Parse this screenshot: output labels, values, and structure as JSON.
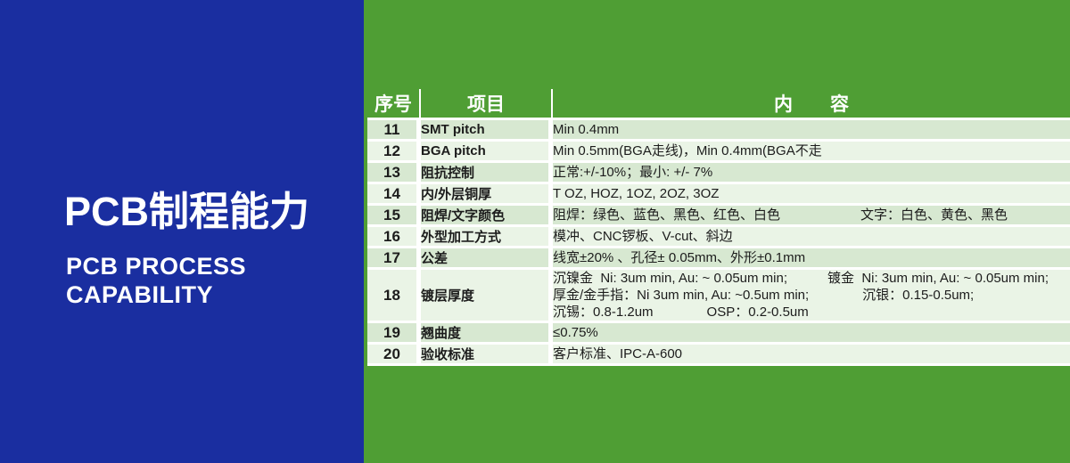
{
  "colors": {
    "blue": "#1A2EA0",
    "green": "#4F9E34",
    "row_dark": "#D7E8D1",
    "row_light": "#EAF4E6",
    "text": "#1C1C1C"
  },
  "left_panel": {
    "title": "PCB制程能力",
    "subtitle_line1": "PCB PROCESS",
    "subtitle_line2": "CAPABILITY"
  },
  "table": {
    "headers": {
      "no": "序号",
      "item": "项目",
      "content": "内　　容"
    },
    "rows": [
      {
        "no": "11",
        "item": "SMT pitch",
        "content": [
          "Min 0.4mm"
        ]
      },
      {
        "no": "12",
        "item": "BGA pitch",
        "content": [
          "Min 0.5mm(BGA走线)，Min 0.4mm(BGA不走"
        ]
      },
      {
        "no": "13",
        "item": "阻抗控制",
        "content": [
          "正常:+/-10%；最小: +/- 7%"
        ]
      },
      {
        "no": "14",
        "item": "内/外层铜厚",
        "content": [
          "T OZ, HOZ, 1OZ, 2OZ, 3OZ"
        ]
      },
      {
        "no": "15",
        "item": "阻焊/文字颜色",
        "content": [
          "阻焊：绿色、蓝色、黑色、红色、白色　　　　　　文字：白色、黄色、黑色"
        ]
      },
      {
        "no": "16",
        "item": "外型加工方式",
        "content": [
          "模冲、CNC锣板、V-cut、斜边"
        ]
      },
      {
        "no": "17",
        "item": "公差",
        "content": [
          "线宽±20% 、孔径± 0.05mm、外形±0.1mm"
        ]
      },
      {
        "no": "18",
        "item": "镀层厚度",
        "content": [
          "沉镍金  Ni: 3um min, Au: ~ 0.05um min;　　　镀金  Ni: 3um min, Au: ~ 0.05um min;",
          "厚金/金手指：Ni 3um min, Au: ~0.5um min;　　　　沉银：0.15-0.5um;",
          "沉锡：0.8-1.2um　　　　OSP：0.2-0.5um"
        ]
      },
      {
        "no": "19",
        "item": "翘曲度",
        "content": [
          "≤0.75%"
        ]
      },
      {
        "no": "20",
        "item": "验收标准",
        "content": [
          "客户标准、IPC-A-600"
        ]
      }
    ]
  }
}
